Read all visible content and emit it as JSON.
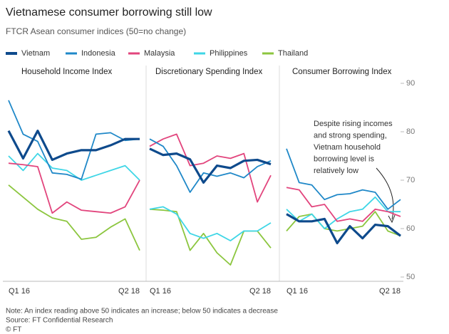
{
  "title": "Vietnamese consumer borrowing still low",
  "subtitle": "FTCR Asean consumer indices (50=no change)",
  "legend": [
    {
      "name": "Vietnam",
      "color": "#0e4a8c"
    },
    {
      "name": "Indonesia",
      "color": "#1f88c8"
    },
    {
      "name": "Malaysia",
      "color": "#e2457d"
    },
    {
      "name": "Philippines",
      "color": "#3fd6e6"
    },
    {
      "name": "Thailand",
      "color": "#8cc63f"
    }
  ],
  "ylim": [
    50,
    90
  ],
  "yticks": [
    50,
    60,
    70,
    80,
    90
  ],
  "chart_data": [
    {
      "type": "line",
      "title": "Household Income Index",
      "categories": [
        "Q1 16",
        null,
        null,
        null,
        null,
        null,
        null,
        null,
        null,
        "Q2 18"
      ],
      "series": [
        {
          "values": [
            80.2,
            74.5,
            80.2,
            74.2,
            75.5,
            76.2,
            76.2,
            77.2,
            78.5,
            78.5
          ]
        },
        {
          "values": [
            86.5,
            79.5,
            78,
            71.5,
            71.2,
            70.2,
            79.5,
            79.8,
            78.2,
            78.5
          ]
        },
        {
          "values": [
            73.5,
            73.2,
            72.8,
            63.2,
            65.5,
            63.8,
            63.5,
            63.2,
            64.5,
            70
          ]
        },
        {
          "values": [
            75,
            72,
            75.5,
            72.5,
            72,
            70,
            71,
            72,
            73,
            70
          ]
        },
        {
          "values": [
            69,
            66.5,
            64,
            62.2,
            61.5,
            57.8,
            58.2,
            60.3,
            62,
            55.5
          ]
        }
      ]
    },
    {
      "type": "line",
      "title": "Discretionary Spending Index",
      "categories": [
        "Q1 16",
        null,
        null,
        null,
        null,
        null,
        null,
        null,
        null,
        "Q2 18"
      ],
      "series": [
        {
          "values": [
            76.5,
            75.2,
            75.5,
            74.3,
            69.5,
            73,
            72.5,
            74,
            74.2,
            73.3
          ]
        },
        {
          "values": [
            78.5,
            77,
            73,
            67.5,
            71.5,
            70.8,
            71.5,
            70.5,
            72.8,
            74
          ]
        },
        {
          "values": [
            77,
            78.5,
            79.5,
            73,
            73.5,
            75,
            74.5,
            75.5,
            65.5,
            71
          ]
        },
        {
          "values": [
            64,
            64.5,
            63,
            59,
            58,
            59,
            57.5,
            59.5,
            59.5,
            61.2
          ]
        },
        {
          "values": [
            64,
            63.8,
            63.5,
            55.5,
            59,
            55,
            52.5,
            59.5,
            59.5,
            56
          ]
        }
      ]
    },
    {
      "type": "line",
      "title": "Consumer Borrowing Index",
      "categories": [
        "Q1 16",
        null,
        null,
        null,
        null,
        null,
        null,
        null,
        null,
        "Q2 18"
      ],
      "annotation": [
        "Despite rising incomes",
        "and strong spending,",
        "Vietnam household",
        "borrowing level is",
        "relatively low"
      ],
      "series": [
        {
          "values": [
            63,
            61.5,
            61.5,
            62,
            57,
            60.5,
            58,
            60.8,
            60.5,
            58.5
          ]
        },
        {
          "values": [
            76.5,
            69.5,
            69,
            66,
            67,
            67.2,
            68,
            67.5,
            64,
            66
          ]
        },
        {
          "values": [
            68.5,
            68,
            64.5,
            65,
            61.5,
            62,
            61.5,
            64,
            63.5,
            62.5
          ]
        },
        {
          "values": [
            64,
            61.5,
            63,
            60,
            62,
            63.5,
            64,
            66.5,
            63.5,
            63.5
          ]
        },
        {
          "values": [
            59.5,
            62.5,
            63,
            60,
            59.5,
            60,
            60.5,
            63.5,
            59.5,
            58.5
          ]
        }
      ]
    }
  ],
  "notes": [
    "Note: An index reading above 50 indicates an increase; below 50 indicates a decrease",
    "Source: FT Confidential Research",
    "© FT"
  ]
}
